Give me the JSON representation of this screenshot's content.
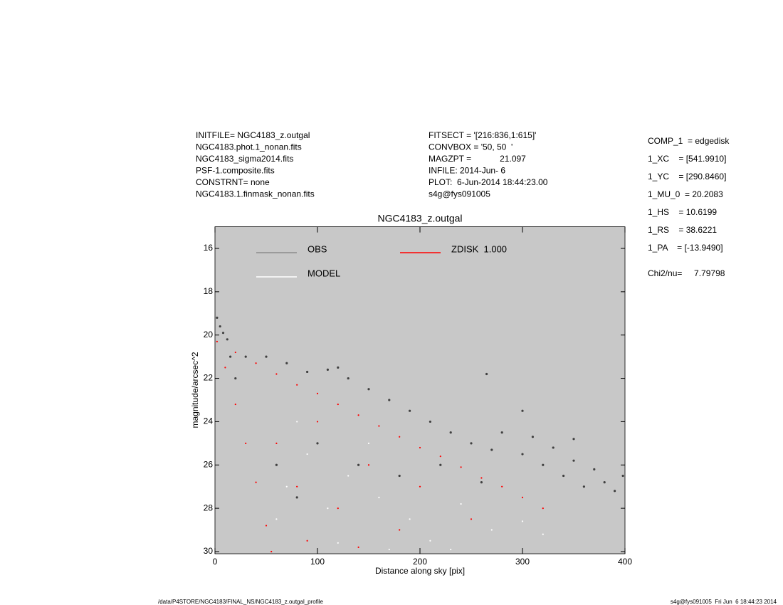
{
  "header": {
    "left": [
      "INITFILE= NGC4183_z.outgal",
      "NGC4183.phot.1_nonan.fits",
      "NGC4183_sigma2014.fits",
      "PSF-1.composite.fits",
      "CONSTRNT= none",
      "NGC4183.1.finmask_nonan.fits"
    ],
    "middle": [
      "FITSECT = '[216:836,1:615]'",
      "CONVBOX = '50, 50  '",
      "MAGZPT =            21.097",
      "INFILE: 2014-Jun- 6",
      "PLOT:  6-Jun-2014 18:44:23.00",
      "s4g@fys091005"
    ],
    "right": [
      "COMP_1  = edgedisk",
      "1_XC    = [541.9910]",
      "1_YC    = [290.8460]",
      "1_MU_0  = 20.2083",
      "1_HS    = 10.6199",
      "1_RS    = 38.6221",
      "1_PA    = [-13.9490]"
    ],
    "chi": "Chi2/nu=     7.79798"
  },
  "footer": {
    "left": "/data/P4STORE/NGC4183/FINAL_NS/NGC4183_z.outgal_profile",
    "right": "s4g@fys091005  Fri Jun  6 18:44:23 2014"
  },
  "chart_data": {
    "type": "scatter",
    "title": "NGC4183_z.outgal",
    "x_label": "Distance along sky [pix]",
    "y_label": "magnitude/arcsec^2",
    "xlim": [
      0,
      400
    ],
    "xticks": [
      0,
      100,
      200,
      300,
      400
    ],
    "ylim": [
      30.1,
      15
    ],
    "yticks": [
      16,
      18,
      20,
      22,
      24,
      26,
      28,
      30
    ],
    "background": "#c8c8c8",
    "series": [
      {
        "name": "OBS",
        "color": "#404040",
        "legend_color": "#8c8c8c",
        "x": [
          2,
          5,
          8,
          12,
          15,
          20,
          30,
          50,
          70,
          90,
          110,
          120,
          130,
          150,
          170,
          190,
          210,
          230,
          250,
          265,
          270,
          280,
          300,
          310,
          320,
          330,
          340,
          350,
          360,
          370,
          380,
          390,
          398,
          100,
          140,
          180,
          220,
          260,
          60,
          80,
          300,
          350
        ],
        "values": [
          19.2,
          19.6,
          19.9,
          20.2,
          21,
          22,
          21,
          21,
          21.3,
          21.7,
          21.6,
          21.5,
          22,
          22.5,
          23,
          23.5,
          24,
          24.5,
          25,
          21.8,
          25.3,
          24.5,
          25.5,
          24.7,
          26,
          25.2,
          26.5,
          25.8,
          27,
          26.2,
          26.8,
          27.2,
          26.5,
          25,
          26,
          26.5,
          26,
          26.8,
          26,
          27.5,
          23.5,
          24.8
        ]
      },
      {
        "name": "MODEL",
        "color": "#ffffff",
        "legend_color": "#ffffff",
        "x": [
          70,
          90,
          110,
          130,
          160,
          190,
          210,
          240,
          270,
          300,
          120,
          170,
          60,
          80,
          150,
          230,
          320
        ],
        "values": [
          27,
          25.5,
          28,
          26.5,
          27.5,
          28.5,
          29.5,
          27.8,
          29,
          28.6,
          29.6,
          29.9,
          28.5,
          24,
          25,
          29.9,
          29.2
        ]
      },
      {
        "name": "ZDISK  1.000",
        "color": "#ff0000",
        "legend_color": "#ff0000",
        "x": [
          2,
          20,
          40,
          60,
          80,
          100,
          120,
          140,
          160,
          180,
          200,
          220,
          240,
          260,
          280,
          300,
          320,
          10,
          20,
          30,
          40,
          50,
          55,
          60,
          80,
          100,
          120,
          150,
          180,
          200,
          250,
          90,
          140
        ],
        "values": [
          20.3,
          20.8,
          21.3,
          21.8,
          22.3,
          22.7,
          23.2,
          23.7,
          24.2,
          24.7,
          25.2,
          25.6,
          26.1,
          26.6,
          27,
          27.5,
          28,
          21.5,
          23.2,
          25,
          26.8,
          28.8,
          30,
          25,
          27,
          24,
          28,
          26,
          29,
          27,
          28.5,
          29.5,
          29.8
        ]
      }
    ]
  }
}
